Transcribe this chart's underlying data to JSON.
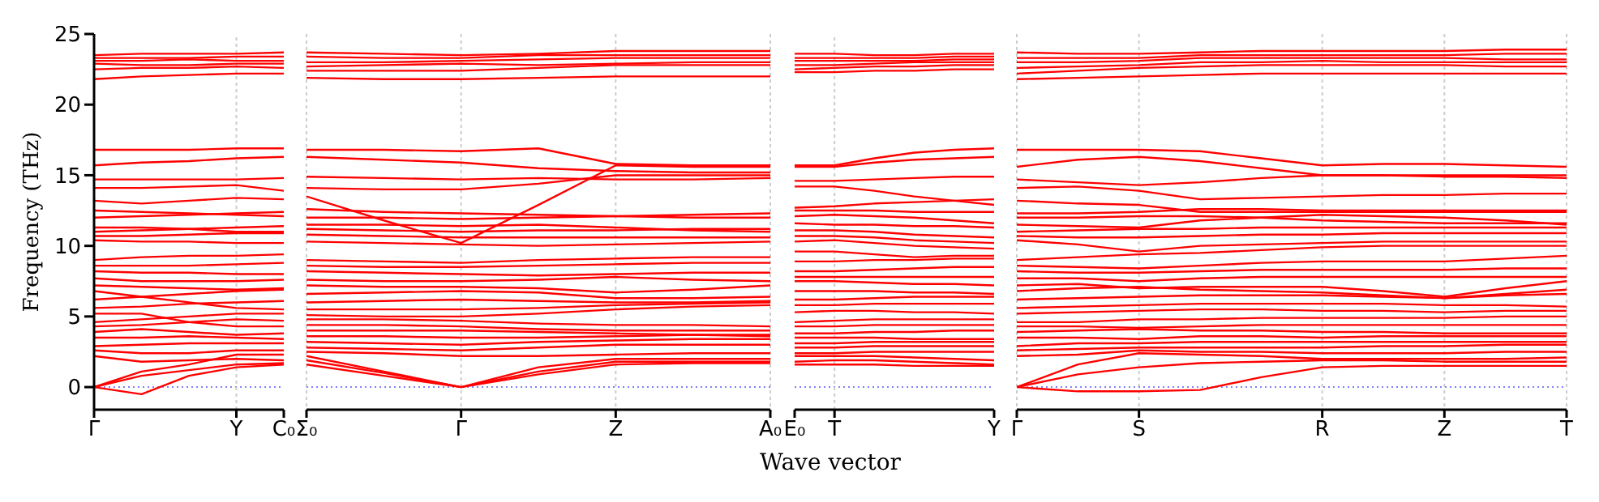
{
  "chart_data": [
    {
      "type": "line",
      "ylabel": "Frequency (THz)",
      "ylim": [
        -1.6,
        25
      ],
      "yticks": [
        0,
        5,
        10,
        15,
        20,
        25
      ],
      "categories": [
        "Γ",
        null,
        null,
        "Y",
        "C₀"
      ],
      "ref_lines": [
        {
          "axis": "y",
          "value": 0,
          "color": "#8080ff",
          "line_style": "dotted"
        },
        {
          "axis": "x",
          "value": "Y",
          "color": "#cccccc",
          "line_style": "dashed"
        }
      ],
      "series": [
        {
          "color": "#ff0000",
          "values": [
            0,
            -0.5,
            0.8,
            1.4,
            1.6
          ]
        },
        {
          "color": "#ff0000",
          "values": [
            0,
            0.8,
            1.2,
            1.6,
            1.7
          ]
        },
        {
          "color": "#ff0000",
          "values": [
            0,
            1.1,
            1.6,
            2.3,
            2.3
          ]
        },
        {
          "color": "#ff0000",
          "values": [
            2.2,
            1.8,
            1.9,
            2.0,
            1.9
          ]
        },
        {
          "color": "#ff0000",
          "values": [
            2.6,
            2.4,
            2.4,
            2.6,
            2.6
          ]
        },
        {
          "color": "#ff0000",
          "values": [
            2.9,
            3.0,
            3.1,
            3.1,
            3.1
          ]
        },
        {
          "color": "#ff0000",
          "values": [
            3.5,
            3.5,
            3.6,
            3.5,
            3.4
          ]
        },
        {
          "color": "#ff0000",
          "values": [
            3.9,
            4.1,
            3.9,
            3.7,
            3.8
          ]
        },
        {
          "color": "#ff0000",
          "values": [
            4.3,
            4.4,
            4.6,
            4.8,
            4.7
          ]
        },
        {
          "color": "#ff0000",
          "values": [
            4.6,
            4.8,
            5.0,
            5.2,
            5.2
          ]
        },
        {
          "color": "#ff0000",
          "values": [
            5.2,
            5.2,
            4.6,
            4.3,
            4.3
          ]
        },
        {
          "color": "#ff0000",
          "values": [
            5.6,
            5.7,
            5.9,
            6.0,
            6.1
          ]
        },
        {
          "color": "#ff0000",
          "values": [
            6.2,
            6.4,
            6.6,
            6.8,
            6.9
          ]
        },
        {
          "color": "#ff0000",
          "values": [
            6.8,
            6.4,
            6.0,
            5.6,
            5.5
          ]
        },
        {
          "color": "#ff0000",
          "values": [
            7.2,
            7.1,
            7.0,
            6.9,
            7.0
          ]
        },
        {
          "color": "#ff0000",
          "values": [
            7.7,
            7.5,
            7.5,
            7.5,
            7.6
          ]
        },
        {
          "color": "#ff0000",
          "values": [
            8.2,
            8.1,
            8.1,
            8.0,
            8.0
          ]
        },
        {
          "color": "#ff0000",
          "values": [
            8.6,
            8.6,
            8.6,
            8.7,
            8.8
          ]
        },
        {
          "color": "#ff0000",
          "values": [
            9.0,
            9.2,
            9.3,
            9.3,
            9.4
          ]
        },
        {
          "color": "#ff0000",
          "values": [
            10.4,
            10.3,
            10.3,
            10.2,
            10.2
          ]
        },
        {
          "color": "#ff0000",
          "values": [
            10.7,
            10.7,
            10.8,
            10.9,
            10.9
          ]
        },
        {
          "color": "#ff0000",
          "values": [
            11.0,
            11.1,
            11.2,
            11.3,
            11.4
          ]
        },
        {
          "color": "#ff0000",
          "values": [
            11.3,
            11.3,
            11.2,
            11.0,
            11.0
          ]
        },
        {
          "color": "#ff0000",
          "values": [
            12.0,
            12.1,
            12.2,
            12.3,
            12.4
          ]
        },
        {
          "color": "#ff0000",
          "values": [
            12.5,
            12.4,
            12.3,
            12.2,
            12.1
          ]
        },
        {
          "color": "#ff0000",
          "values": [
            13.2,
            13.0,
            13.2,
            13.4,
            13.3
          ]
        },
        {
          "color": "#ff0000",
          "values": [
            14.1,
            14.1,
            14.2,
            14.3,
            13.9
          ]
        },
        {
          "color": "#ff0000",
          "values": [
            14.7,
            14.7,
            14.7,
            14.7,
            14.8
          ]
        },
        {
          "color": "#ff0000",
          "values": [
            15.7,
            15.9,
            16.0,
            16.2,
            16.3
          ]
        },
        {
          "color": "#ff0000",
          "values": [
            16.8,
            16.8,
            16.8,
            16.9,
            16.9
          ]
        },
        {
          "color": "#ff0000",
          "values": [
            21.8,
            22.0,
            22.1,
            22.2,
            22.2
          ]
        },
        {
          "color": "#ff0000",
          "values": [
            22.5,
            22.6,
            22.6,
            22.7,
            22.6
          ]
        },
        {
          "color": "#ff0000",
          "values": [
            22.9,
            22.8,
            22.8,
            22.9,
            22.9
          ]
        },
        {
          "color": "#ff0000",
          "values": [
            23.1,
            23.1,
            23.2,
            23.1,
            23.1
          ]
        },
        {
          "color": "#ff0000",
          "values": [
            23.3,
            23.3,
            23.3,
            23.4,
            23.4
          ]
        },
        {
          "color": "#ff0000",
          "values": [
            23.5,
            23.6,
            23.6,
            23.6,
            23.7
          ]
        }
      ]
    },
    {
      "type": "line",
      "tick_labels": "x",
      "ylim": [
        -1.6,
        25
      ],
      "yticks": [
        0,
        5,
        10,
        15,
        20,
        25
      ],
      "categories": [
        "Σ₀",
        null,
        "Γ",
        null,
        "Z",
        null,
        "A₀"
      ],
      "grid": "x",
      "ref_lines": [
        {
          "axis": "y",
          "value": 0,
          "color": "#8080ff",
          "line_style": "dotted"
        }
      ],
      "series": [
        {
          "color": "#ff0000",
          "values": [
            1.6,
            0.8,
            0,
            0.9,
            1.6,
            1.7,
            1.7
          ]
        },
        {
          "color": "#ff0000",
          "values": [
            1.9,
            1.0,
            0,
            1.1,
            1.8,
            1.8,
            1.8
          ]
        },
        {
          "color": "#ff0000",
          "values": [
            2.2,
            1.1,
            0,
            1.4,
            2.0,
            2.0,
            2.0
          ]
        },
        {
          "color": "#ff0000",
          "values": [
            2.5,
            2.4,
            2.2,
            2.2,
            2.3,
            2.4,
            2.4
          ]
        },
        {
          "color": "#ff0000",
          "values": [
            2.8,
            2.7,
            2.6,
            2.8,
            3.0,
            3.0,
            3.0
          ]
        },
        {
          "color": "#ff0000",
          "values": [
            3.2,
            3.1,
            3.0,
            3.2,
            3.3,
            3.4,
            3.4
          ]
        },
        {
          "color": "#ff0000",
          "values": [
            3.6,
            3.6,
            3.5,
            3.5,
            3.6,
            3.7,
            3.7
          ]
        },
        {
          "color": "#ff0000",
          "values": [
            4.0,
            4.0,
            4.0,
            3.9,
            3.8,
            3.7,
            3.6
          ]
        },
        {
          "color": "#ff0000",
          "values": [
            4.4,
            4.4,
            4.3,
            4.1,
            4.0,
            4.0,
            4.0
          ]
        },
        {
          "color": "#ff0000",
          "values": [
            4.8,
            4.8,
            4.7,
            4.5,
            4.4,
            4.4,
            4.3
          ]
        },
        {
          "color": "#ff0000",
          "values": [
            5.1,
            5.0,
            5.0,
            5.2,
            5.5,
            5.7,
            5.8
          ]
        },
        {
          "color": "#ff0000",
          "values": [
            5.5,
            5.5,
            5.5,
            5.6,
            5.8,
            5.9,
            6.0
          ]
        },
        {
          "color": "#ff0000",
          "values": [
            6.0,
            6.1,
            6.2,
            6.1,
            6.0,
            6.0,
            6.1
          ]
        },
        {
          "color": "#ff0000",
          "values": [
            6.6,
            6.7,
            6.8,
            6.7,
            6.3,
            6.3,
            6.4
          ]
        },
        {
          "color": "#ff0000",
          "values": [
            7.2,
            7.1,
            7.1,
            7.0,
            6.7,
            6.9,
            7.2
          ]
        },
        {
          "color": "#ff0000",
          "values": [
            7.6,
            7.5,
            7.5,
            7.6,
            7.8,
            7.6,
            7.5
          ]
        },
        {
          "color": "#ff0000",
          "values": [
            8.2,
            8.1,
            8.0,
            7.9,
            8.0,
            8.1,
            8.1
          ]
        },
        {
          "color": "#ff0000",
          "values": [
            8.6,
            8.5,
            8.5,
            8.6,
            8.7,
            8.8,
            8.8
          ]
        },
        {
          "color": "#ff0000",
          "values": [
            9.0,
            8.9,
            8.8,
            9.0,
            9.1,
            9.2,
            9.2
          ]
        },
        {
          "color": "#ff0000",
          "values": [
            10.3,
            10.2,
            10.1,
            10.0,
            10.1,
            10.2,
            10.3
          ]
        },
        {
          "color": "#ff0000",
          "values": [
            10.8,
            10.7,
            10.6,
            10.6,
            10.6,
            10.6,
            10.6
          ]
        },
        {
          "color": "#ff0000",
          "values": [
            11.2,
            11.1,
            11.0,
            11.1,
            11.1,
            11.2,
            11.2
          ]
        },
        {
          "color": "#ff0000",
          "values": [
            11.5,
            11.5,
            11.4,
            11.5,
            11.3,
            11.1,
            11.0
          ]
        },
        {
          "color": "#ff0000",
          "values": [
            12.0,
            12.0,
            11.9,
            12.0,
            12.1,
            12.2,
            12.3
          ]
        },
        {
          "color": "#ff0000",
          "values": [
            12.6,
            12.4,
            12.3,
            12.2,
            12.1,
            12.0,
            12.0
          ]
        },
        {
          "color": "#ff0000",
          "values": [
            13.5,
            11.8,
            10.2,
            12.9,
            15.7,
            15.6,
            15.6
          ]
        },
        {
          "color": "#ff0000",
          "values": [
            14.1,
            14.0,
            14.0,
            14.4,
            15.0,
            15.0,
            15.0
          ]
        },
        {
          "color": "#ff0000",
          "values": [
            14.9,
            14.8,
            14.7,
            14.8,
            14.7,
            14.7,
            14.8
          ]
        },
        {
          "color": "#ff0000",
          "values": [
            16.3,
            16.1,
            15.9,
            15.5,
            15.3,
            15.2,
            15.2
          ]
        },
        {
          "color": "#ff0000",
          "values": [
            16.8,
            16.8,
            16.7,
            16.9,
            15.8,
            15.7,
            15.7
          ]
        },
        {
          "color": "#ff0000",
          "values": [
            21.9,
            21.8,
            21.8,
            21.9,
            22.0,
            22.0,
            22.0
          ]
        },
        {
          "color": "#ff0000",
          "values": [
            22.4,
            22.4,
            22.4,
            22.6,
            22.8,
            22.8,
            22.8
          ]
        },
        {
          "color": "#ff0000",
          "values": [
            22.7,
            22.8,
            22.9,
            22.8,
            22.9,
            23.0,
            23.0
          ]
        },
        {
          "color": "#ff0000",
          "values": [
            23.0,
            23.0,
            23.1,
            23.2,
            23.3,
            23.3,
            23.3
          ]
        },
        {
          "color": "#ff0000",
          "values": [
            23.4,
            23.3,
            23.3,
            23.5,
            23.5,
            23.5,
            23.5
          ]
        },
        {
          "color": "#ff0000",
          "values": [
            23.7,
            23.6,
            23.5,
            23.6,
            23.8,
            23.8,
            23.8
          ]
        }
      ]
    },
    {
      "type": "line",
      "tick_labels": "x",
      "xlabel": "Wave vector",
      "ylim": [
        -1.6,
        25
      ],
      "yticks": [
        0,
        5,
        10,
        15,
        20,
        25
      ],
      "categories": [
        "E₀",
        "T",
        null,
        null,
        null,
        "Y"
      ],
      "ref_lines": [
        {
          "axis": "y",
          "value": 0,
          "color": "#8080ff",
          "line_style": "dotted"
        },
        {
          "axis": "x",
          "value": "T",
          "color": "#cccccc",
          "line_style": "dashed"
        }
      ],
      "series": [
        {
          "color": "#ff0000",
          "values": [
            1.6,
            1.6,
            1.6,
            1.5,
            1.5,
            1.5
          ]
        },
        {
          "color": "#ff0000",
          "values": [
            1.8,
            1.9,
            1.9,
            1.8,
            1.7,
            1.6
          ]
        },
        {
          "color": "#ff0000",
          "values": [
            2.2,
            2.2,
            2.2,
            2.1,
            2.0,
            1.9
          ]
        },
        {
          "color": "#ff0000",
          "values": [
            2.4,
            2.4,
            2.5,
            2.5,
            2.5,
            2.5
          ]
        },
        {
          "color": "#ff0000",
          "values": [
            2.8,
            2.8,
            2.9,
            2.9,
            2.9,
            2.9
          ]
        },
        {
          "color": "#ff0000",
          "values": [
            3.1,
            3.1,
            3.2,
            3.2,
            3.2,
            3.2
          ]
        },
        {
          "color": "#ff0000",
          "values": [
            3.5,
            3.5,
            3.5,
            3.4,
            3.4,
            3.4
          ]
        },
        {
          "color": "#ff0000",
          "values": [
            3.8,
            3.8,
            3.9,
            3.9,
            4.0,
            4.0
          ]
        },
        {
          "color": "#ff0000",
          "values": [
            4.3,
            4.3,
            4.4,
            4.4,
            4.4,
            4.4
          ]
        },
        {
          "color": "#ff0000",
          "values": [
            4.6,
            4.7,
            4.8,
            4.8,
            4.8,
            4.8
          ]
        },
        {
          "color": "#ff0000",
          "values": [
            5.3,
            5.4,
            5.4,
            5.3,
            5.3,
            5.2
          ]
        },
        {
          "color": "#ff0000",
          "values": [
            5.8,
            5.8,
            5.9,
            5.9,
            5.9,
            5.9
          ]
        },
        {
          "color": "#ff0000",
          "values": [
            6.2,
            6.2,
            6.3,
            6.4,
            6.4,
            6.4
          ]
        },
        {
          "color": "#ff0000",
          "values": [
            6.8,
            6.8,
            6.8,
            6.7,
            6.7,
            6.6
          ]
        },
        {
          "color": "#ff0000",
          "values": [
            7.5,
            7.5,
            7.4,
            7.3,
            7.3,
            7.2
          ]
        },
        {
          "color": "#ff0000",
          "values": [
            7.8,
            7.8,
            7.8,
            7.8,
            7.8,
            7.8
          ]
        },
        {
          "color": "#ff0000",
          "values": [
            8.2,
            8.2,
            8.3,
            8.4,
            8.5,
            8.5
          ]
        },
        {
          "color": "#ff0000",
          "values": [
            8.9,
            8.9,
            9.0,
            9.0,
            9.1,
            9.1
          ]
        },
        {
          "color": "#ff0000",
          "values": [
            9.6,
            9.6,
            9.4,
            9.2,
            9.3,
            9.3
          ]
        },
        {
          "color": "#ff0000",
          "values": [
            10.3,
            10.4,
            10.2,
            10.0,
            9.9,
            9.8
          ]
        },
        {
          "color": "#ff0000",
          "values": [
            10.7,
            10.7,
            10.6,
            10.4,
            10.3,
            10.2
          ]
        },
        {
          "color": "#ff0000",
          "values": [
            11.1,
            11.1,
            11.0,
            10.8,
            10.7,
            10.6
          ]
        },
        {
          "color": "#ff0000",
          "values": [
            11.6,
            11.5,
            11.5,
            11.4,
            11.4,
            11.3
          ]
        },
        {
          "color": "#ff0000",
          "values": [
            12.1,
            12.2,
            12.1,
            12.0,
            11.8,
            11.6
          ]
        },
        {
          "color": "#ff0000",
          "values": [
            12.5,
            12.5,
            12.5,
            12.4,
            12.4,
            12.4
          ]
        },
        {
          "color": "#ff0000",
          "values": [
            12.7,
            12.8,
            13.0,
            13.1,
            13.2,
            13.3
          ]
        },
        {
          "color": "#ff0000",
          "values": [
            14.2,
            14.2,
            13.9,
            13.5,
            13.2,
            12.9
          ]
        },
        {
          "color": "#ff0000",
          "values": [
            14.6,
            14.6,
            14.7,
            14.8,
            14.9,
            14.9
          ]
        },
        {
          "color": "#ff0000",
          "values": [
            15.6,
            15.6,
            15.9,
            16.1,
            16.2,
            16.3
          ]
        },
        {
          "color": "#ff0000",
          "values": [
            15.7,
            15.7,
            16.2,
            16.6,
            16.8,
            16.9
          ]
        },
        {
          "color": "#ff0000",
          "values": [
            22.3,
            22.3,
            22.4,
            22.4,
            22.5,
            22.5
          ]
        },
        {
          "color": "#ff0000",
          "values": [
            22.5,
            22.6,
            22.7,
            22.7,
            22.8,
            22.8
          ]
        },
        {
          "color": "#ff0000",
          "values": [
            22.8,
            22.8,
            22.9,
            23.0,
            23.0,
            23.0
          ]
        },
        {
          "color": "#ff0000",
          "values": [
            23.1,
            23.1,
            23.1,
            23.1,
            23.2,
            23.2
          ]
        },
        {
          "color": "#ff0000",
          "values": [
            23.3,
            23.3,
            23.3,
            23.3,
            23.4,
            23.4
          ]
        },
        {
          "color": "#ff0000",
          "values": [
            23.6,
            23.6,
            23.5,
            23.5,
            23.6,
            23.6
          ]
        }
      ]
    },
    {
      "type": "line",
      "tick_labels": "x",
      "ylim": [
        -1.6,
        25
      ],
      "yticks": [
        0,
        5,
        10,
        15,
        20,
        25
      ],
      "categories": [
        "Γ",
        null,
        "S",
        null,
        null,
        "R",
        null,
        "Z",
        null,
        "T"
      ],
      "grid": "x",
      "ref_lines": [
        {
          "axis": "y",
          "value": 0,
          "color": "#8080ff",
          "line_style": "dotted"
        }
      ],
      "series": [
        {
          "color": "#ff0000",
          "values": [
            0,
            -0.3,
            -0.3,
            -0.2,
            0.7,
            1.4,
            1.5,
            1.5,
            1.5,
            1.5
          ]
        },
        {
          "color": "#ff0000",
          "values": [
            0,
            0.9,
            1.4,
            1.7,
            1.8,
            1.9,
            1.9,
            1.8,
            1.8,
            1.8
          ]
        },
        {
          "color": "#ff0000",
          "values": [
            0,
            1.6,
            2.4,
            2.3,
            2.2,
            2.0,
            2.0,
            2.0,
            2.0,
            2.1
          ]
        },
        {
          "color": "#ff0000",
          "values": [
            2.2,
            2.3,
            2.6,
            2.5,
            2.5,
            2.4,
            2.4,
            2.4,
            2.5,
            2.5
          ]
        },
        {
          "color": "#ff0000",
          "values": [
            2.6,
            2.7,
            2.8,
            2.8,
            2.8,
            2.8,
            2.9,
            2.9,
            3.0,
            3.0
          ]
        },
        {
          "color": "#ff0000",
          "values": [
            2.9,
            3.1,
            3.1,
            3.2,
            3.2,
            3.2,
            3.2,
            3.2,
            3.2,
            3.2
          ]
        },
        {
          "color": "#ff0000",
          "values": [
            3.5,
            3.5,
            3.4,
            3.6,
            3.6,
            3.5,
            3.6,
            3.6,
            3.6,
            3.6
          ]
        },
        {
          "color": "#ff0000",
          "values": [
            3.9,
            4.0,
            4.1,
            4.0,
            4.0,
            3.9,
            3.9,
            3.8,
            3.8,
            3.8
          ]
        },
        {
          "color": "#ff0000",
          "values": [
            4.3,
            4.3,
            4.2,
            4.3,
            4.4,
            4.4,
            4.4,
            4.4,
            4.4,
            4.4
          ]
        },
        {
          "color": "#ff0000",
          "values": [
            4.6,
            4.6,
            4.8,
            4.8,
            4.9,
            4.9,
            4.9,
            4.9,
            5.0,
            5.0
          ]
        },
        {
          "color": "#ff0000",
          "values": [
            5.2,
            5.3,
            5.4,
            5.5,
            5.5,
            5.4,
            5.4,
            5.3,
            5.4,
            5.4
          ]
        },
        {
          "color": "#ff0000",
          "values": [
            5.6,
            5.7,
            5.8,
            5.9,
            5.9,
            5.9,
            5.9,
            5.8,
            5.8,
            5.7
          ]
        },
        {
          "color": "#ff0000",
          "values": [
            6.2,
            6.3,
            6.4,
            6.5,
            6.5,
            6.5,
            6.4,
            6.3,
            6.5,
            6.6
          ]
        },
        {
          "color": "#ff0000",
          "values": [
            6.8,
            7.0,
            7.1,
            6.9,
            6.8,
            6.7,
            6.5,
            6.3,
            6.6,
            6.9
          ]
        },
        {
          "color": "#ff0000",
          "values": [
            7.2,
            7.3,
            7.0,
            7.1,
            7.1,
            7.1,
            6.8,
            6.4,
            7.0,
            7.5
          ]
        },
        {
          "color": "#ff0000",
          "values": [
            7.7,
            7.7,
            7.5,
            7.7,
            7.8,
            7.8,
            7.8,
            7.8,
            7.8,
            7.8
          ]
        },
        {
          "color": "#ff0000",
          "values": [
            8.2,
            8.1,
            8.1,
            8.2,
            8.3,
            8.3,
            8.3,
            8.3,
            8.4,
            8.4
          ]
        },
        {
          "color": "#ff0000",
          "values": [
            8.6,
            8.5,
            8.4,
            8.6,
            8.8,
            8.9,
            8.9,
            8.9,
            9.1,
            9.3
          ]
        },
        {
          "color": "#ff0000",
          "values": [
            9.0,
            9.2,
            9.4,
            9.5,
            9.7,
            9.9,
            10.0,
            10.0,
            10.0,
            10.0
          ]
        },
        {
          "color": "#ff0000",
          "values": [
            10.4,
            10.1,
            9.6,
            10.0,
            10.1,
            10.2,
            10.3,
            10.3,
            10.3,
            10.3
          ]
        },
        {
          "color": "#ff0000",
          "values": [
            10.7,
            10.6,
            10.6,
            10.7,
            10.8,
            10.8,
            10.9,
            10.9,
            10.9,
            10.9
          ]
        },
        {
          "color": "#ff0000",
          "values": [
            11.0,
            11.1,
            11.2,
            11.2,
            11.3,
            11.3,
            11.3,
            11.3,
            11.3,
            11.3
          ]
        },
        {
          "color": "#ff0000",
          "values": [
            11.5,
            11.4,
            11.3,
            11.8,
            12.0,
            12.2,
            12.1,
            12.0,
            11.8,
            11.5
          ]
        },
        {
          "color": "#ff0000",
          "values": [
            12.0,
            12.0,
            12.1,
            12.1,
            12.0,
            11.8,
            11.7,
            11.6,
            11.6,
            11.6
          ]
        },
        {
          "color": "#ff0000",
          "values": [
            12.3,
            12.3,
            12.4,
            12.6,
            12.6,
            12.5,
            12.5,
            12.5,
            12.5,
            12.5
          ]
        },
        {
          "color": "#ff0000",
          "values": [
            13.2,
            13.0,
            12.9,
            12.4,
            12.4,
            12.4,
            12.4,
            12.4,
            12.4,
            12.4
          ]
        },
        {
          "color": "#ff0000",
          "values": [
            14.1,
            14.2,
            13.9,
            13.3,
            13.4,
            13.5,
            13.6,
            13.6,
            13.7,
            13.7
          ]
        },
        {
          "color": "#ff0000",
          "values": [
            14.7,
            14.5,
            14.3,
            14.5,
            14.8,
            15.0,
            15.0,
            14.9,
            14.9,
            14.8
          ]
        },
        {
          "color": "#ff0000",
          "values": [
            15.6,
            16.1,
            16.3,
            16.0,
            15.5,
            15.0,
            15.0,
            15.0,
            15.0,
            15.0
          ]
        },
        {
          "color": "#ff0000",
          "values": [
            16.8,
            16.8,
            16.8,
            16.7,
            16.2,
            15.7,
            15.8,
            15.8,
            15.7,
            15.6
          ]
        },
        {
          "color": "#ff0000",
          "values": [
            21.8,
            21.9,
            22.0,
            22.1,
            22.2,
            22.2,
            22.2,
            22.2,
            22.2,
            22.2
          ]
        },
        {
          "color": "#ff0000",
          "values": [
            22.2,
            22.4,
            22.6,
            22.7,
            22.8,
            22.8,
            22.8,
            22.8,
            22.7,
            22.7
          ]
        },
        {
          "color": "#ff0000",
          "values": [
            22.6,
            22.7,
            22.8,
            23.0,
            23.0,
            23.1,
            23.0,
            23.0,
            23.0,
            23.0
          ]
        },
        {
          "color": "#ff0000",
          "values": [
            23.0,
            23.0,
            23.1,
            23.3,
            23.3,
            23.3,
            23.3,
            23.3,
            23.2,
            23.2
          ]
        },
        {
          "color": "#ff0000",
          "values": [
            23.3,
            23.3,
            23.3,
            23.5,
            23.5,
            23.5,
            23.5,
            23.5,
            23.6,
            23.6
          ]
        },
        {
          "color": "#ff0000",
          "values": [
            23.7,
            23.6,
            23.6,
            23.7,
            23.8,
            23.8,
            23.8,
            23.8,
            23.9,
            23.9
          ]
        }
      ]
    }
  ]
}
